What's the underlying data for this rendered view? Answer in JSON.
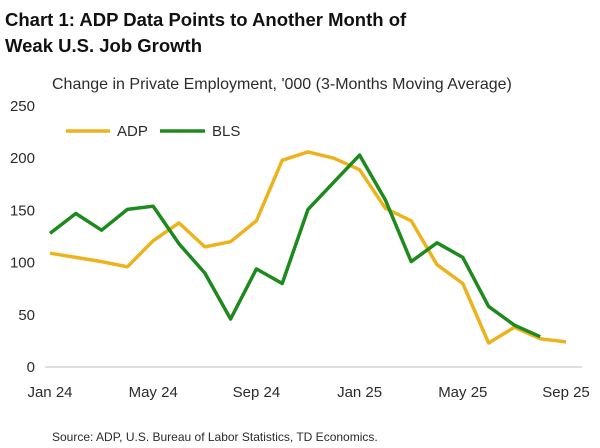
{
  "colors": {
    "adp": "#EDB31E",
    "bls": "#1E8A1E",
    "axis": "#bfbfbf"
  },
  "chart_data": {
    "type": "line",
    "title_lines": [
      "Chart 1: ADP Data Points to Another Month of",
      "Weak U.S. Job Growth"
    ],
    "subtitle": "Change in Private Employment, '000 (3-Months Moving Average)",
    "x": [
      "2024-01",
      "2024-02",
      "2024-03",
      "2024-04",
      "2024-05",
      "2024-06",
      "2024-07",
      "2024-08",
      "2024-09",
      "2024-10",
      "2024-11",
      "2024-12",
      "2025-01",
      "2025-02",
      "2025-03",
      "2025-04",
      "2025-05",
      "2025-06",
      "2025-07",
      "2025-08",
      "2025-09"
    ],
    "x_ticks": [
      {
        "date": "2024-01",
        "label": "Jan 24"
      },
      {
        "date": "2024-05",
        "label": "May 24"
      },
      {
        "date": "2024-09",
        "label": "Sep 24"
      },
      {
        "date": "2025-01",
        "label": "Jan 25"
      },
      {
        "date": "2025-05",
        "label": "May 25"
      },
      {
        "date": "2025-09",
        "label": "Sep 25"
      }
    ],
    "y_ticks": [
      0,
      50,
      100,
      150,
      200,
      250
    ],
    "ylim": [
      0,
      250
    ],
    "grid": false,
    "legend": "top-left",
    "series": [
      {
        "name": "ADP",
        "color": "#EDB31E",
        "values": [
          109,
          105,
          101,
          96,
          121,
          138,
          115,
          120,
          140,
          198,
          206,
          200,
          189,
          152,
          140,
          98,
          80,
          23,
          38,
          27,
          24
        ]
      },
      {
        "name": "BLS",
        "color": "#1E8A1E",
        "values": [
          128,
          147,
          131,
          151,
          154,
          118,
          90,
          46,
          94,
          80,
          151,
          177,
          203,
          160,
          101,
          119,
          105,
          58,
          40,
          29,
          null
        ]
      }
    ]
  },
  "source": "Source: ADP, U.S. Bureau of Labor Statistics, TD Economics."
}
